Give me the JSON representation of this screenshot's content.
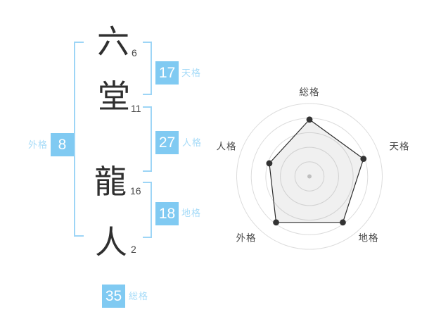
{
  "colors": {
    "accent": "#80caf2",
    "accent_light": "#a6dbf8",
    "bracket": "#9dd5f6",
    "name_text": "#2f2f2f",
    "stroke_text": "#4a4a4a",
    "ring": "#dcdcdc",
    "axis_label": "#4a4a4a",
    "polygon_stroke": "#2b2b2b",
    "polygon_fill": "rgba(130,130,130,0.12)",
    "point": "#333333",
    "center_dot": "#c8c8c8"
  },
  "name_panel": {
    "characters": [
      {
        "char": "六",
        "strokes": "6"
      },
      {
        "char": "堂",
        "strokes": "11"
      },
      {
        "char": "龍",
        "strokes": "16"
      },
      {
        "char": "人",
        "strokes": "2"
      }
    ],
    "kaku": [
      {
        "id": "tenkaku",
        "value": "17",
        "label": "天格"
      },
      {
        "id": "jinkaku",
        "value": "27",
        "label": "人格"
      },
      {
        "id": "chikaku",
        "value": "18",
        "label": "地格"
      },
      {
        "id": "gaikaku",
        "value": "8",
        "label": "外格"
      },
      {
        "id": "soukaku",
        "value": "35",
        "label": "総格"
      }
    ]
  },
  "chart_data": {
    "type": "radar",
    "title": "",
    "axes": [
      "総格",
      "天格",
      "地格",
      "外格",
      "人格"
    ],
    "values": [
      3.9,
      3.9,
      3.9,
      3.9,
      2.9
    ],
    "scale_max": 5,
    "rings": 5,
    "grid": "concentric-circles",
    "legend": "none",
    "axis_scores": {
      "総格": 35,
      "天格": 17,
      "地格": 18,
      "外格": 8,
      "人格": 27
    }
  }
}
